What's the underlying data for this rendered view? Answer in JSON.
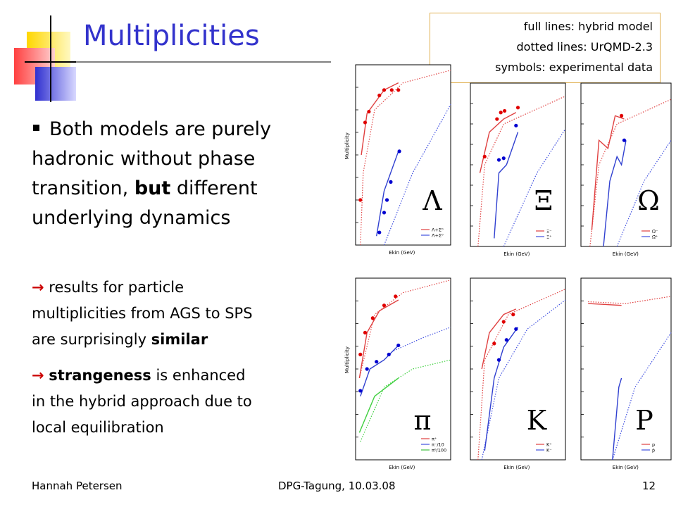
{
  "title": "Multiplicities",
  "legend_box": [
    "full lines: hybrid model",
    "dotted lines: UrQMD-2.3",
    "symbols: experimental data"
  ],
  "bullet": {
    "lines": [
      [
        "Both models are purely"
      ],
      [
        "hadronic without phase"
      ],
      [
        "transition, ",
        "but",
        " different"
      ],
      [
        "underlying dynamics"
      ]
    ]
  },
  "points": [
    {
      "arrow": "→",
      "lines": [
        [
          " results for particle"
        ],
        [
          "multiplicities from AGS to SPS"
        ],
        [
          "are surprisingly ",
          "similar"
        ]
      ]
    },
    {
      "arrow": "→",
      "lines": [
        [
          " ",
          "strangeness",
          " is enhanced"
        ],
        [
          "in the hybrid approach due to"
        ],
        [
          "local equilibration"
        ]
      ]
    }
  ],
  "panels": [
    {
      "symbol": "Λ",
      "y_label": "Multiplicity",
      "x_label": "Ekin (GeV)",
      "legend": [
        "Λ+Σ⁰",
        "Λ̄+Σ̄⁰"
      ]
    },
    {
      "symbol": "Ξ",
      "y_label": "",
      "x_label": "Ekin (GeV)",
      "legend": [
        "Ξ⁻",
        "Ξ̄⁺"
      ]
    },
    {
      "symbol": "Ω",
      "y_label": "",
      "x_label": "Ekin (GeV)",
      "legend": [
        "Ω⁻",
        "Ω̄⁺"
      ]
    },
    {
      "symbol": "π",
      "y_label": "Multiplicity",
      "x_label": "Ekin (GeV)",
      "legend": [
        "π⁺",
        "π⁻/10",
        "π⁰/100"
      ]
    },
    {
      "symbol": "K",
      "y_label": "",
      "x_label": "Ekin (GeV)",
      "legend": [
        "K⁺",
        "K⁻"
      ]
    },
    {
      "symbol": "P",
      "y_label": "",
      "x_label": "Ekin (GeV)",
      "legend": [
        "p",
        "p̄"
      ]
    }
  ],
  "footer": {
    "author": "Hannah Petersen",
    "event": "DPG-Tagung, 10.03.08",
    "page": "12"
  }
}
